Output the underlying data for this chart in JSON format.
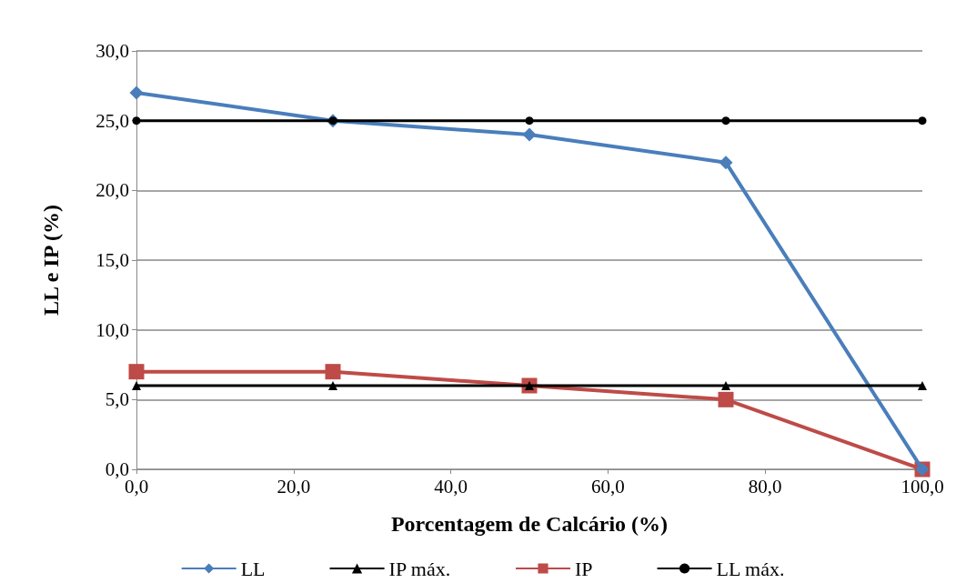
{
  "chart_data": {
    "type": "line",
    "xlabel": "Porcentagem de Calcário (%)",
    "ylabel": "LL e IP (%)",
    "x": [
      0,
      25,
      50,
      75,
      100
    ],
    "xlim": [
      0,
      100
    ],
    "xticks": [
      {
        "value": 0,
        "label": "0,0"
      },
      {
        "value": 20,
        "label": "20,0"
      },
      {
        "value": 40,
        "label": "40,0"
      },
      {
        "value": 60,
        "label": "60,0"
      },
      {
        "value": 80,
        "label": "80,0"
      },
      {
        "value": 100,
        "label": "100,0"
      }
    ],
    "ylim": [
      0,
      30
    ],
    "yticks": [
      {
        "value": 0,
        "label": "0,0"
      },
      {
        "value": 5,
        "label": "5,0"
      },
      {
        "value": 10,
        "label": "10,0"
      },
      {
        "value": 15,
        "label": "15,0"
      },
      {
        "value": 20,
        "label": "20,0"
      },
      {
        "value": 25,
        "label": "25,0"
      },
      {
        "value": 30,
        "label": "30,0"
      }
    ],
    "grid": "y",
    "legend": "bottom",
    "line_style": "solid",
    "series": [
      {
        "name": "LL",
        "color": "#4a7ebb",
        "marker": "diamond",
        "values": [
          27,
          25,
          24,
          22,
          0
        ]
      },
      {
        "name": "IP máx.",
        "color": "#000000",
        "marker": "triangle",
        "values": [
          6,
          6,
          6,
          6,
          6
        ]
      },
      {
        "name": "IP",
        "color": "#be4b48",
        "marker": "square",
        "values": [
          7,
          7,
          6,
          5,
          0
        ]
      },
      {
        "name": "LL máx.",
        "color": "#000000",
        "marker": "circle",
        "values": [
          25,
          25,
          25,
          25,
          25
        ]
      }
    ]
  }
}
